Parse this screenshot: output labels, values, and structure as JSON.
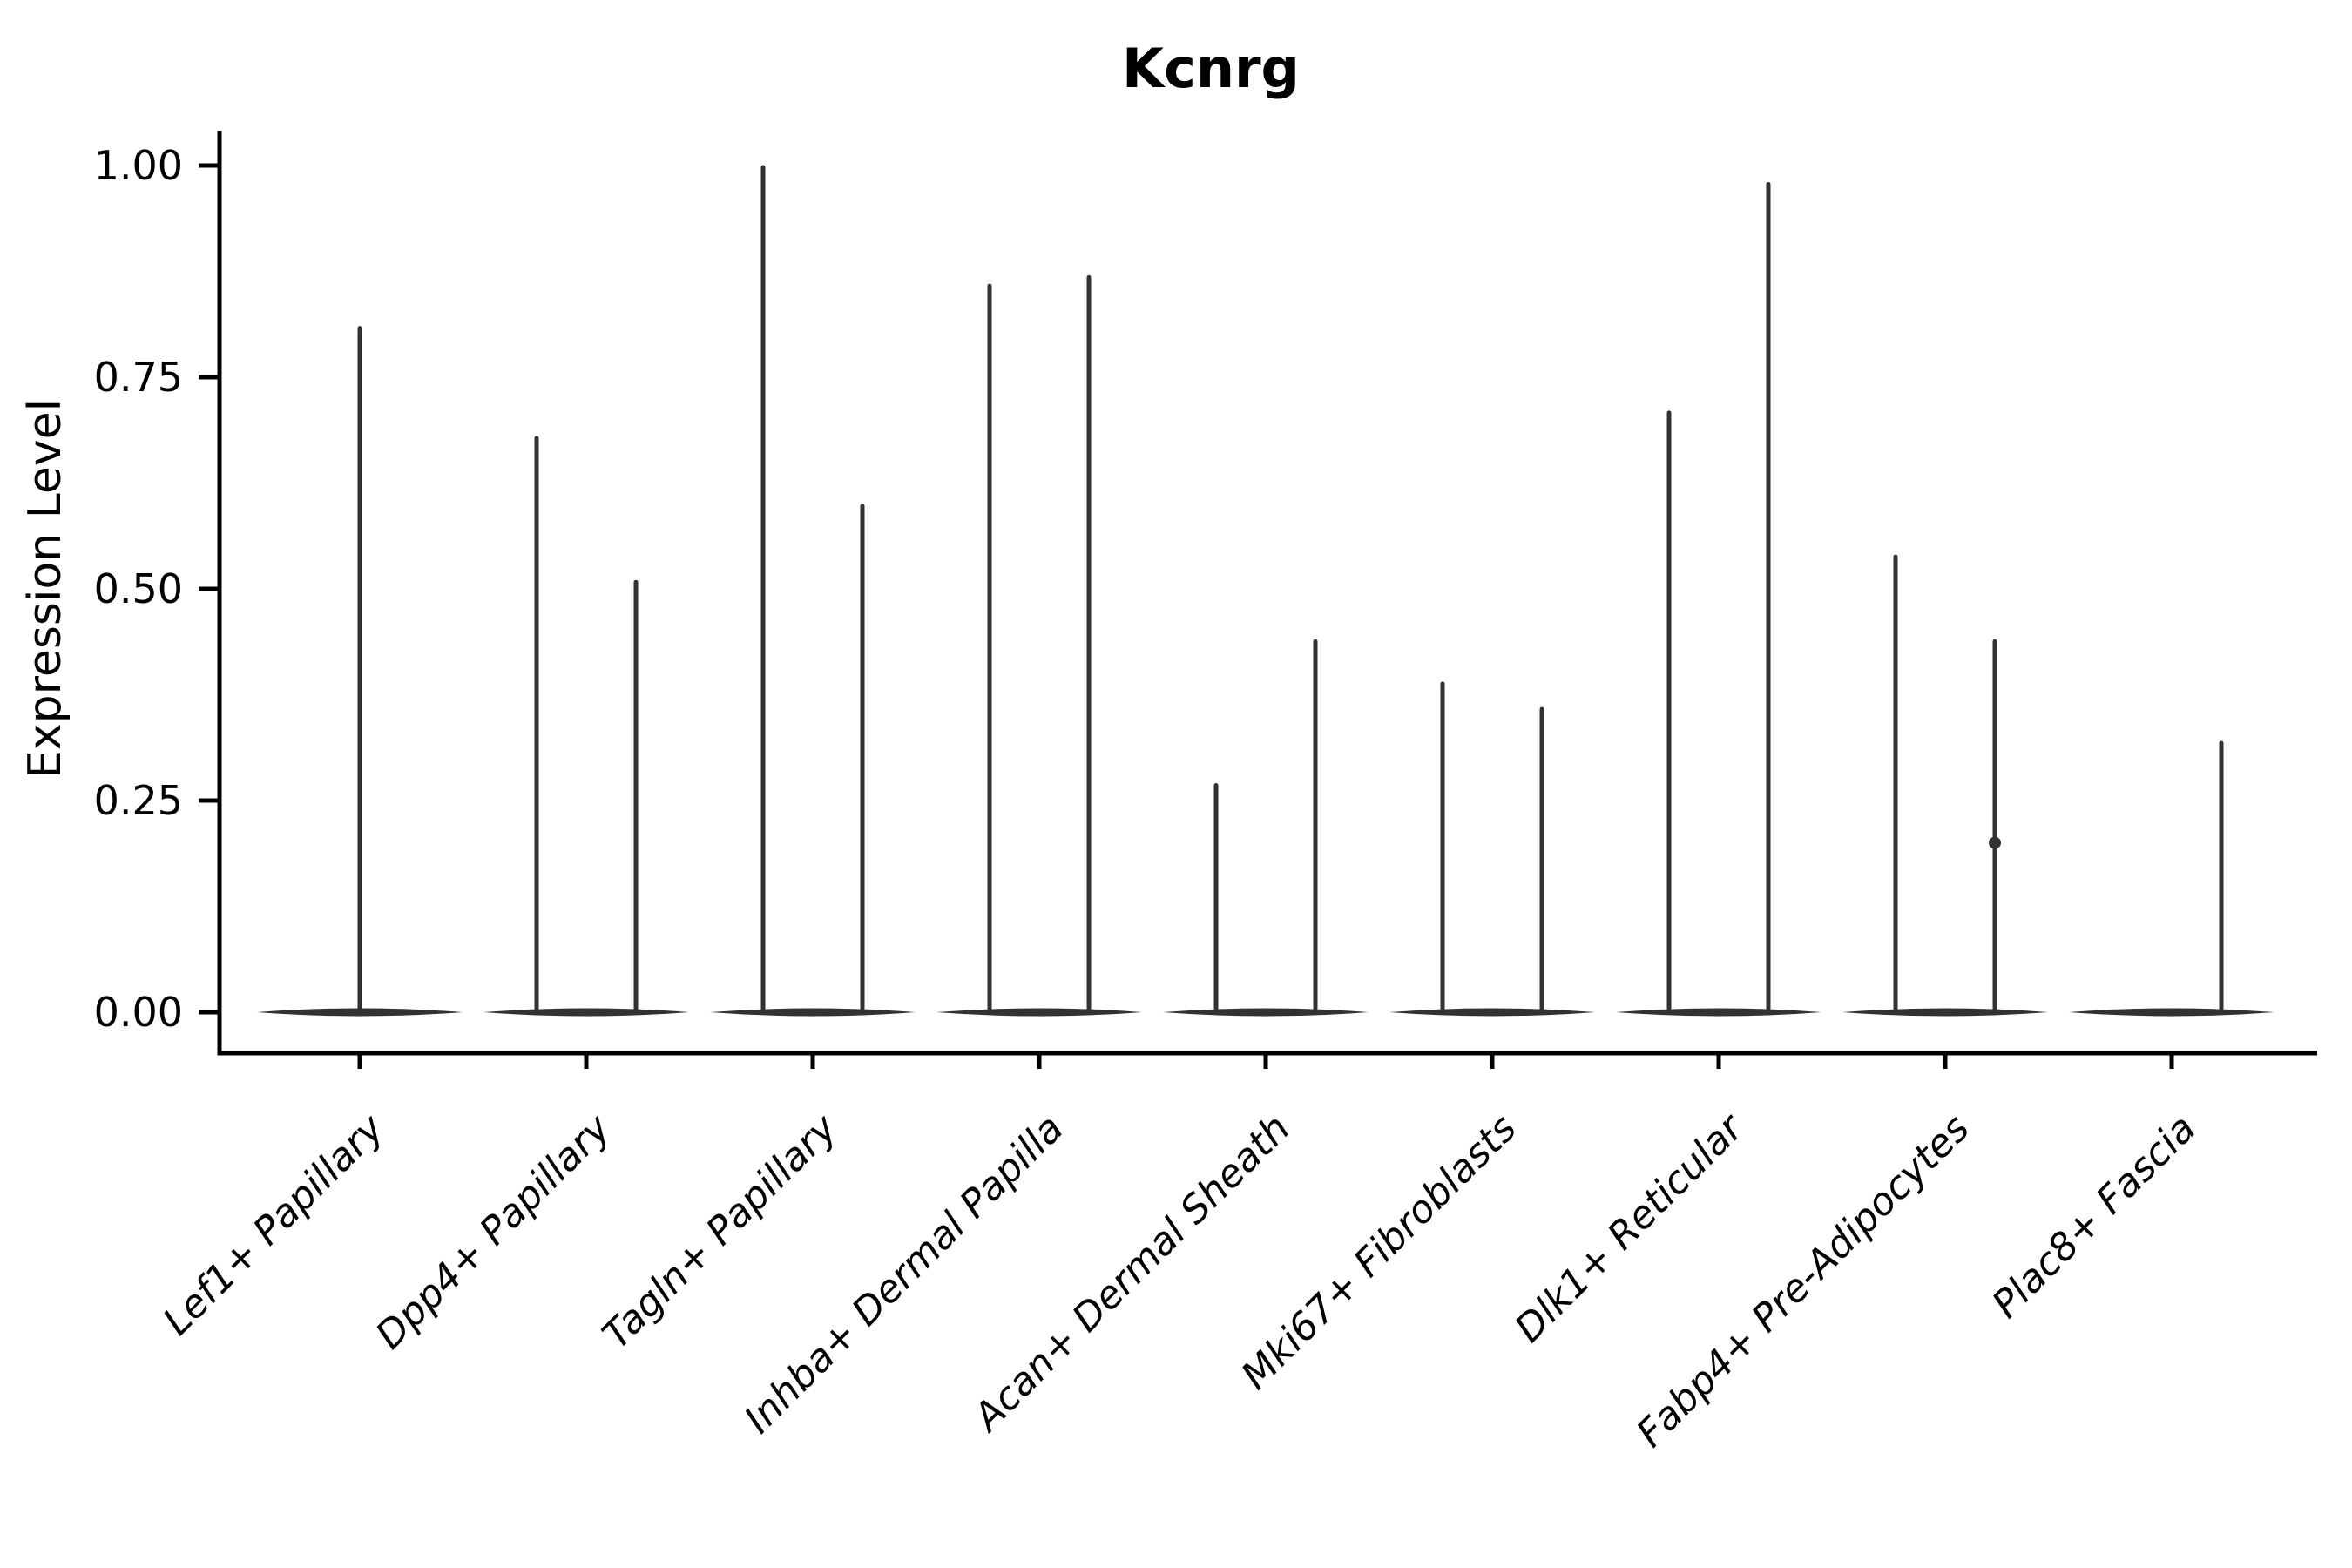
{
  "figure": {
    "title": "Kcnrg",
    "ylabel": "Expression Level"
  },
  "chart_data": {
    "type": "violin",
    "title": "Kcnrg",
    "xlabel": "",
    "ylabel": "Expression Level",
    "ylim": [
      0.0,
      1.05
    ],
    "grid": false,
    "legend": "none",
    "axis_color": "#000000",
    "violin_color": "#323232",
    "yticks": {
      "values": [
        0.0,
        0.25,
        0.5,
        0.75,
        1.0
      ],
      "labels": [
        "0.00",
        "0.25",
        "0.50",
        "0.75",
        "1.00"
      ]
    },
    "categories": [
      "Lef1+ Papillary",
      "Dpp4+ Papillary",
      "Tagln+ Papillary",
      "Inhba+ Dermal Papilla",
      "Acan+ Dermal Sheath",
      "Mki67+ Fibroblasts",
      "Dlk1+ Reticular",
      "Fabp4+ Pre-Adipocytes",
      "Plac8+ Fascia"
    ],
    "violins": [
      {
        "category": "Lef1+ Papillary",
        "spikes": [
          {
            "position": "center",
            "max": 0.81
          }
        ]
      },
      {
        "category": "Dpp4+ Papillary",
        "spikes": [
          {
            "position": "left",
            "max": 0.68
          },
          {
            "position": "right",
            "max": 0.51
          }
        ]
      },
      {
        "category": "Tagln+ Papillary",
        "spikes": [
          {
            "position": "left",
            "max": 1.0
          },
          {
            "position": "right",
            "max": 0.6
          }
        ]
      },
      {
        "category": "Inhba+ Dermal Papilla",
        "spikes": [
          {
            "position": "left",
            "max": 0.86
          },
          {
            "position": "right",
            "max": 0.87
          }
        ]
      },
      {
        "category": "Acan+ Dermal Sheath",
        "spikes": [
          {
            "position": "left",
            "max": 0.27
          },
          {
            "position": "right",
            "max": 0.44
          }
        ]
      },
      {
        "category": "Mki67+ Fibroblasts",
        "spikes": [
          {
            "position": "left",
            "max": 0.39
          },
          {
            "position": "right",
            "max": 0.36
          }
        ]
      },
      {
        "category": "Dlk1+ Reticular",
        "spikes": [
          {
            "position": "left",
            "max": 0.71
          },
          {
            "position": "right",
            "max": 0.98
          }
        ]
      },
      {
        "category": "Fabp4+ Pre-Adipocytes",
        "spikes": [
          {
            "position": "left",
            "max": 0.54
          },
          {
            "position": "right",
            "max": 0.44
          }
        ],
        "points": [
          {
            "position": "right",
            "value": 0.2
          }
        ]
      },
      {
        "category": "Plac8+ Fascia",
        "spikes": [
          {
            "position": "right",
            "max": 0.32
          }
        ]
      }
    ]
  }
}
